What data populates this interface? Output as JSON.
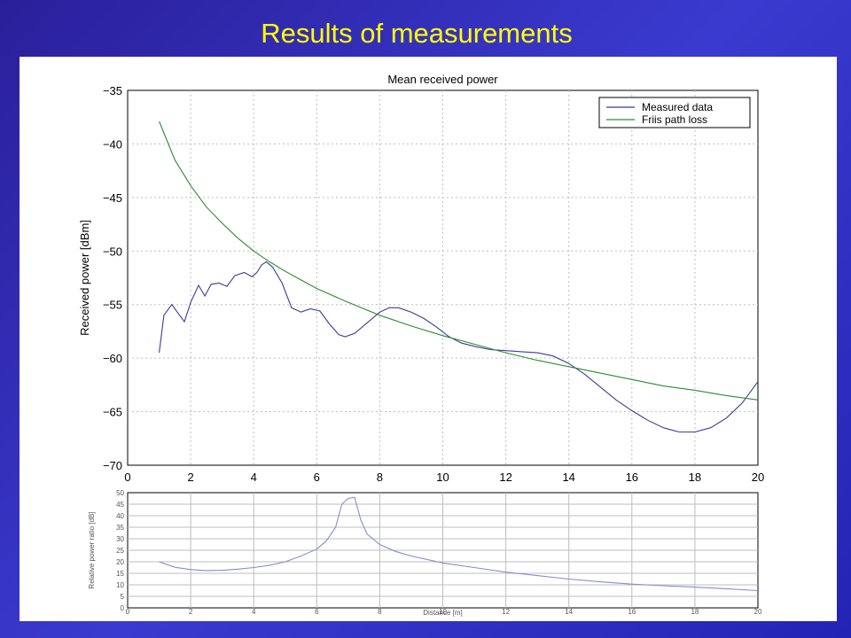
{
  "slide": {
    "title": "Results of measurements"
  },
  "colors": {
    "measured": "#3b3b9a",
    "friis": "#2e8b2e",
    "ratio": "#8a8ad0",
    "grid": "#bdbdbd"
  },
  "chart_data": [
    {
      "type": "line",
      "title": "Mean received power",
      "xlabel": "",
      "ylabel": "Received power [dBm]",
      "xlim": [
        0,
        20
      ],
      "ylim": [
        -70,
        -35
      ],
      "xticks": [
        "0",
        "2",
        "4",
        "6",
        "8",
        "10",
        "12",
        "14",
        "16",
        "18",
        "20"
      ],
      "yticks": [
        "−35",
        "−40",
        "−45",
        "−50",
        "−55",
        "−60",
        "−65",
        "−70"
      ],
      "grid": true,
      "legend_position": "top-right",
      "series": [
        {
          "name": "Measured data",
          "color": "#3b3b9a",
          "x": [
            1.0,
            1.15,
            1.4,
            1.6,
            1.8,
            2.0,
            2.25,
            2.45,
            2.65,
            2.9,
            3.15,
            3.4,
            3.7,
            3.95,
            4.1,
            4.25,
            4.4,
            4.6,
            4.9,
            5.2,
            5.5,
            5.8,
            6.1,
            6.4,
            6.7,
            6.9,
            7.2,
            7.6,
            8.0,
            8.3,
            8.6,
            9.0,
            9.4,
            9.8,
            10.2,
            10.6,
            11.0,
            11.5,
            12.0,
            12.5,
            13.0,
            13.5,
            14.0,
            14.5,
            15.0,
            15.5,
            16.0,
            16.5,
            17.0,
            17.5,
            18.0,
            18.5,
            19.0,
            19.5,
            20.0
          ],
          "y": [
            -59.5,
            -56.0,
            -55.0,
            -55.8,
            -56.6,
            -54.8,
            -53.2,
            -54.2,
            -53.1,
            -53.0,
            -53.3,
            -52.3,
            -52.0,
            -52.4,
            -52.0,
            -51.3,
            -51.0,
            -51.5,
            -53.0,
            -55.3,
            -55.7,
            -55.4,
            -55.6,
            -56.8,
            -57.8,
            -58.0,
            -57.7,
            -56.7,
            -55.7,
            -55.3,
            -55.3,
            -55.7,
            -56.3,
            -57.1,
            -58.0,
            -58.6,
            -58.9,
            -59.2,
            -59.3,
            -59.4,
            -59.5,
            -59.8,
            -60.5,
            -61.5,
            -62.7,
            -63.9,
            -64.9,
            -65.8,
            -66.5,
            -66.9,
            -66.9,
            -66.5,
            -65.6,
            -64.2,
            -62.2
          ]
        },
        {
          "name": "Friis path loss",
          "color": "#2e8b2e",
          "x": [
            1.0,
            1.5,
            2.0,
            2.5,
            3.0,
            3.5,
            4.0,
            4.5,
            5.0,
            5.5,
            6.0,
            7.0,
            8.0,
            9.0,
            10.0,
            11.0,
            12.0,
            13.0,
            14.0,
            15.0,
            16.0,
            17.0,
            18.0,
            19.0,
            20.0
          ],
          "y": [
            -37.9,
            -41.5,
            -43.9,
            -45.9,
            -47.4,
            -48.8,
            -50.0,
            -51.0,
            -51.9,
            -52.7,
            -53.5,
            -54.8,
            -56.0,
            -57.0,
            -57.9,
            -58.7,
            -59.5,
            -60.2,
            -60.8,
            -61.4,
            -62.0,
            -62.6,
            -63.0,
            -63.5,
            -63.9
          ]
        }
      ]
    },
    {
      "type": "line",
      "title": "",
      "xlabel": "Distance [m]",
      "ylabel": "Relative power ratio [dB]",
      "xlim": [
        0,
        20
      ],
      "ylim": [
        0,
        50
      ],
      "xticks": [
        "0",
        "2",
        "4",
        "6",
        "8",
        "10",
        "12",
        "14",
        "16",
        "18",
        "20"
      ],
      "yticks": [
        "0",
        "5",
        "10",
        "15",
        "20",
        "25",
        "30",
        "35",
        "40",
        "45",
        "50"
      ],
      "grid": true,
      "series": [
        {
          "color": "#8a8ad0",
          "x": [
            1.0,
            1.5,
            2.0,
            2.5,
            3.0,
            3.5,
            4.0,
            4.5,
            5.0,
            5.5,
            6.0,
            6.3,
            6.6,
            6.8,
            7.0,
            7.2,
            7.4,
            7.6,
            8.0,
            8.5,
            9.0,
            10.0,
            11.0,
            12.0,
            13.0,
            14.0,
            15.0,
            16.0,
            17.0,
            18.0,
            19.0,
            20.0
          ],
          "y": [
            20.0,
            17.6,
            16.6,
            16.2,
            16.3,
            16.8,
            17.5,
            18.5,
            20.0,
            22.5,
            25.5,
            29.0,
            35.0,
            45.0,
            47.5,
            48.0,
            38.0,
            32.0,
            27.5,
            24.5,
            22.5,
            19.5,
            17.5,
            15.5,
            14.0,
            12.5,
            11.3,
            10.3,
            9.6,
            9.0,
            8.3,
            7.5
          ]
        }
      ]
    }
  ]
}
